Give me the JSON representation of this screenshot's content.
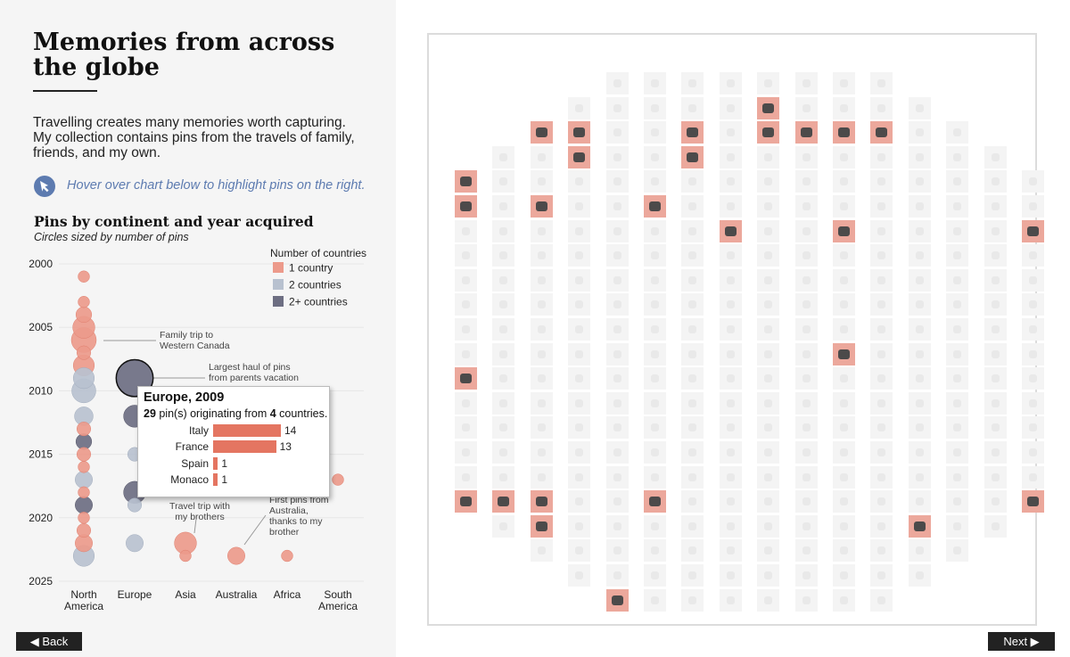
{
  "page": {
    "title": "Memories from across the globe",
    "intro": "Travelling creates many memories worth capturing. My collection contains pins from the travels of family, friends, and my own.",
    "hint": "Hover over chart below to highlight pins on the right.",
    "hint_icon": "cursor-arrow-icon"
  },
  "colors": {
    "one_country": "#ec9a8b",
    "two_countries": "#b8c1cf",
    "multi_countries": "#6d6e82",
    "accent": "#5d7bb0",
    "highlight": "#eca89c"
  },
  "chart_data": {
    "type": "scatter",
    "title": "Pins by continent and year acquired",
    "subtitle": "Circles sized by number of pins",
    "categories": [
      "North America",
      "Europe",
      "Asia",
      "Australia",
      "Africa",
      "South America"
    ],
    "category_lines": [
      [
        "North",
        "America"
      ],
      [
        "Europe"
      ],
      [
        "Asia"
      ],
      [
        "Australia"
      ],
      [
        "Africa"
      ],
      [
        "South",
        "America"
      ]
    ],
    "y_ticks": [
      "2000",
      "2005",
      "2010",
      "2015",
      "2020",
      "2025"
    ],
    "ylim": [
      2000,
      2025
    ],
    "legend_title": "Number of countries",
    "legend": [
      {
        "label": "1 country",
        "group": "one"
      },
      {
        "label": "2 countries",
        "group": "two"
      },
      {
        "label": "2+ countries",
        "group": "multi"
      }
    ],
    "points": [
      {
        "continent": "North America",
        "year": 2001,
        "pins": 1,
        "group": "one"
      },
      {
        "continent": "North America",
        "year": 2003,
        "pins": 1,
        "group": "one"
      },
      {
        "continent": "North America",
        "year": 2004,
        "pins": 3,
        "group": "one"
      },
      {
        "continent": "North America",
        "year": 2005,
        "pins": 8,
        "group": "one"
      },
      {
        "continent": "North America",
        "year": 2006,
        "pins": 11,
        "group": "one"
      },
      {
        "continent": "North America",
        "year": 2007,
        "pins": 2,
        "group": "one"
      },
      {
        "continent": "North America",
        "year": 2008,
        "pins": 7,
        "group": "one"
      },
      {
        "continent": "North America",
        "year": 2009,
        "pins": 7,
        "group": "two"
      },
      {
        "continent": "North America",
        "year": 2010,
        "pins": 10,
        "group": "two"
      },
      {
        "continent": "North America",
        "year": 2012,
        "pins": 5,
        "group": "two"
      },
      {
        "continent": "North America",
        "year": 2013,
        "pins": 2,
        "group": "one"
      },
      {
        "continent": "North America",
        "year": 2014,
        "pins": 3,
        "group": "multi"
      },
      {
        "continent": "North America",
        "year": 2015,
        "pins": 2,
        "group": "one"
      },
      {
        "continent": "North America",
        "year": 2016,
        "pins": 1,
        "group": "one"
      },
      {
        "continent": "North America",
        "year": 2017,
        "pins": 4,
        "group": "two"
      },
      {
        "continent": "North America",
        "year": 2018,
        "pins": 1,
        "group": "one"
      },
      {
        "continent": "North America",
        "year": 2019,
        "pins": 4,
        "group": "multi"
      },
      {
        "continent": "North America",
        "year": 2020,
        "pins": 1,
        "group": "one"
      },
      {
        "continent": "North America",
        "year": 2021,
        "pins": 2,
        "group": "one"
      },
      {
        "continent": "North America",
        "year": 2022,
        "pins": 4,
        "group": "one"
      },
      {
        "continent": "North America",
        "year": 2023,
        "pins": 7,
        "group": "two"
      },
      {
        "continent": "Europe",
        "year": 2009,
        "pins": 29,
        "group": "multi"
      },
      {
        "continent": "Europe",
        "year": 2012,
        "pins": 8,
        "group": "multi"
      },
      {
        "continent": "Europe",
        "year": 2015,
        "pins": 2,
        "group": "two"
      },
      {
        "continent": "Europe",
        "year": 2018,
        "pins": 8,
        "group": "multi"
      },
      {
        "continent": "Europe",
        "year": 2019,
        "pins": 2,
        "group": "two"
      },
      {
        "continent": "Europe",
        "year": 2022,
        "pins": 4,
        "group": "two"
      },
      {
        "continent": "Asia",
        "year": 2022,
        "pins": 8,
        "group": "one"
      },
      {
        "continent": "Asia",
        "year": 2023,
        "pins": 1,
        "group": "one"
      },
      {
        "continent": "Australia",
        "year": 2023,
        "pins": 4,
        "group": "one"
      },
      {
        "continent": "Africa",
        "year": 2023,
        "pins": 1,
        "group": "one"
      },
      {
        "continent": "South America",
        "year": 2017,
        "pins": 1,
        "group": "one"
      }
    ],
    "annotations": [
      {
        "continent": "North America",
        "year": 2006,
        "lines": [
          "Family trip to",
          "Western Canada"
        ]
      },
      {
        "continent": "Europe",
        "year": 2009,
        "lines": [
          "Largest haul of pins",
          "from parents vacation"
        ]
      },
      {
        "continent": "Asia",
        "year": 2022,
        "lines": [
          "Travel trip with",
          "my brothers"
        ]
      },
      {
        "continent": "Australia",
        "year": 2023,
        "lines": [
          "First pins from",
          "Australia,",
          "thanks to my",
          "brother"
        ]
      }
    ]
  },
  "tooltip": {
    "title": "Europe, 2009",
    "pins": "29",
    "countries": "4",
    "pins_text": " pin(s) originating from ",
    "countries_text": " countries.",
    "rows": [
      {
        "country": "Italy",
        "count": 14
      },
      {
        "country": "France",
        "count": 13
      },
      {
        "country": "Spain",
        "count": 1
      },
      {
        "country": "Monaco",
        "count": 1
      }
    ]
  },
  "nav": {
    "back_label": "◀ Back",
    "next_label": "Next ▶"
  },
  "pin_grid": {
    "rows": [
      {
        "start_col": 5,
        "count": 8,
        "highlighted": []
      },
      {
        "start_col": 4,
        "count": 10,
        "highlighted": [
          9
        ]
      },
      {
        "start_col": 3,
        "count": 12,
        "highlighted": [
          3,
          4,
          7,
          9,
          10,
          11,
          12
        ]
      },
      {
        "start_col": 2,
        "count": 14,
        "highlighted": [
          4,
          7
        ]
      },
      {
        "start_col": 1,
        "count": 16,
        "highlighted": [
          1
        ]
      },
      {
        "start_col": 1,
        "count": 16,
        "highlighted": [
          1,
          3,
          6
        ]
      },
      {
        "start_col": 1,
        "count": 16,
        "highlighted": [
          8,
          11,
          16
        ]
      },
      {
        "start_col": 1,
        "count": 16,
        "highlighted": []
      },
      {
        "start_col": 1,
        "count": 16,
        "highlighted": []
      },
      {
        "start_col": 1,
        "count": 16,
        "highlighted": []
      },
      {
        "start_col": 1,
        "count": 16,
        "highlighted": []
      },
      {
        "start_col": 1,
        "count": 16,
        "highlighted": [
          11
        ]
      },
      {
        "start_col": 1,
        "count": 16,
        "highlighted": [
          1
        ]
      },
      {
        "start_col": 1,
        "count": 16,
        "highlighted": []
      },
      {
        "start_col": 1,
        "count": 16,
        "highlighted": []
      },
      {
        "start_col": 1,
        "count": 16,
        "highlighted": []
      },
      {
        "start_col": 1,
        "count": 16,
        "highlighted": []
      },
      {
        "start_col": 1,
        "count": 16,
        "highlighted": [
          1,
          2,
          3,
          6,
          16
        ]
      },
      {
        "start_col": 2,
        "count": 14,
        "highlighted": [
          3,
          13
        ]
      },
      {
        "start_col": 3,
        "count": 12,
        "highlighted": []
      },
      {
        "start_col": 4,
        "count": 10,
        "highlighted": []
      },
      {
        "start_col": 5,
        "count": 8,
        "highlighted": [
          5
        ]
      }
    ]
  }
}
